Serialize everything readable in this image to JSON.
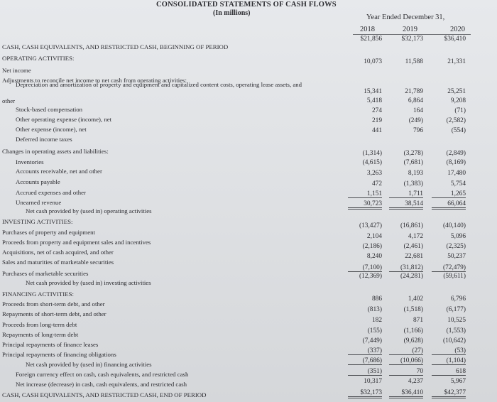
{
  "header": {
    "title": "CONSOLIDATED STATEMENTS OF CASH FLOWS",
    "subtitle": "(In millions)",
    "period_label": "Year Ended December 31,",
    "years": [
      "2018",
      "2019",
      "2020"
    ]
  },
  "rows": [
    {
      "label": "CASH, CASH EQUIVALENTS, AND RESTRICTED CASH, BEGINNING OF PERIOD",
      "values": [
        "$21,856",
        "$32,173",
        "$36,410"
      ]
    },
    {
      "label": "OPERATING ACTIVITIES:",
      "values": []
    },
    {
      "label": "Net income",
      "values": [
        "10,073",
        "11,588",
        "21,331"
      ]
    },
    {
      "label": "Adjustments to reconcile net income to net cash from operating activities:",
      "values": []
    },
    {
      "label": "Depreciation and amortization of property and equipment and capitalized content costs, operating lease assets, and",
      "values": []
    },
    {
      "label": "other",
      "values": [
        "15,341",
        "21,789",
        "25,251"
      ]
    },
    {
      "label": "Stock-based compensation",
      "values": [
        "5,418",
        "6,864",
        "9,208"
      ]
    },
    {
      "label": "Other operating expense (income), net",
      "values": [
        "274",
        "164",
        "(71)"
      ]
    },
    {
      "label": "Other expense (income), net",
      "values": [
        "219",
        "(249)",
        "(2,582)"
      ]
    },
    {
      "label": "Deferred income taxes",
      "values": [
        "441",
        "796",
        "(554)"
      ]
    },
    {
      "label": "Changes in operating assets and liabilities:",
      "values": []
    },
    {
      "label": "Inventories",
      "values": [
        "(1,314)",
        "(3,278)",
        "(2,849)"
      ]
    },
    {
      "label": "Accounts receivable, net and other",
      "values": [
        "(4,615)",
        "(7,681)",
        "(8,169)"
      ]
    },
    {
      "label": "Accounts payable",
      "values": [
        "3,263",
        "8,193",
        "17,480"
      ]
    },
    {
      "label": "Accrued expenses and other",
      "values": [
        "472",
        "(1,383)",
        "5,754"
      ]
    },
    {
      "label": "Unearned revenue",
      "values": [
        "1,151",
        "1,711",
        "1,265"
      ]
    },
    {
      "label": "Net cash provided by (used in) operating activities",
      "values": [
        "30,723",
        "38,514",
        "66,064"
      ]
    },
    {
      "label": "INVESTING ACTIVITIES:",
      "values": []
    },
    {
      "label": "Purchases of property and equipment",
      "values": [
        "(13,427)",
        "(16,861)",
        "(40,140)"
      ]
    },
    {
      "label": "Proceeds from property and equipment sales and incentives",
      "values": [
        "2,104",
        "4,172",
        "5,096"
      ]
    },
    {
      "label": "Acquisitions, net of cash acquired, and other",
      "values": [
        "(2,186)",
        "(2,461)",
        "(2,325)"
      ]
    },
    {
      "label": "Sales and maturities of marketable securities",
      "values": [
        "8,240",
        "22,681",
        "50,237"
      ]
    },
    {
      "label": "Purchases of marketable securities",
      "values": [
        "(7,100)",
        "(31,812)",
        "(72,479)"
      ]
    },
    {
      "label": "Net cash provided by (used in) investing activities",
      "values": [
        "(12,369)",
        "(24,281)",
        "(59,611)"
      ]
    },
    {
      "label": "FINANCING ACTIVITIES:",
      "values": []
    },
    {
      "label": "Proceeds from short-term debt, and other",
      "values": [
        "886",
        "1,402",
        "6,796"
      ]
    },
    {
      "label": "Repayments of short-term debt, and other",
      "values": [
        "(813)",
        "(1,518)",
        "(6,177)"
      ]
    },
    {
      "label": "Proceeds from long-term debt",
      "values": [
        "182",
        "871",
        "10,525"
      ]
    },
    {
      "label": "Repayments of long-term debt",
      "values": [
        "(155)",
        "(1,166)",
        "(1,553)"
      ]
    },
    {
      "label": "Principal repayments of finance leases",
      "values": [
        "(7,449)",
        "(9,628)",
        "(10,642)"
      ]
    },
    {
      "label": "Principal repayments of financing obligations",
      "values": [
        "(337)",
        "(27)",
        "(53)"
      ]
    },
    {
      "label": "Net cash provided by (used in) financing activities",
      "values": [
        "(7,686)",
        "(10,066)",
        "(1,104)"
      ]
    },
    {
      "label": "Foreign currency effect on cash, cash equivalents, and restricted cash",
      "values": [
        "(351)",
        "70",
        "618"
      ]
    },
    {
      "label": "Net increase (decrease) in cash, cash equivalents, and restricted cash",
      "values": [
        "10,317",
        "4,237",
        "5,967"
      ]
    },
    {
      "label": "CASH, CASH EQUIVALENTS, AND RESTRICTED CASH, END OF PERIOD",
      "values": [
        "$32,173",
        "$36,410",
        "$42,377"
      ]
    }
  ]
}
